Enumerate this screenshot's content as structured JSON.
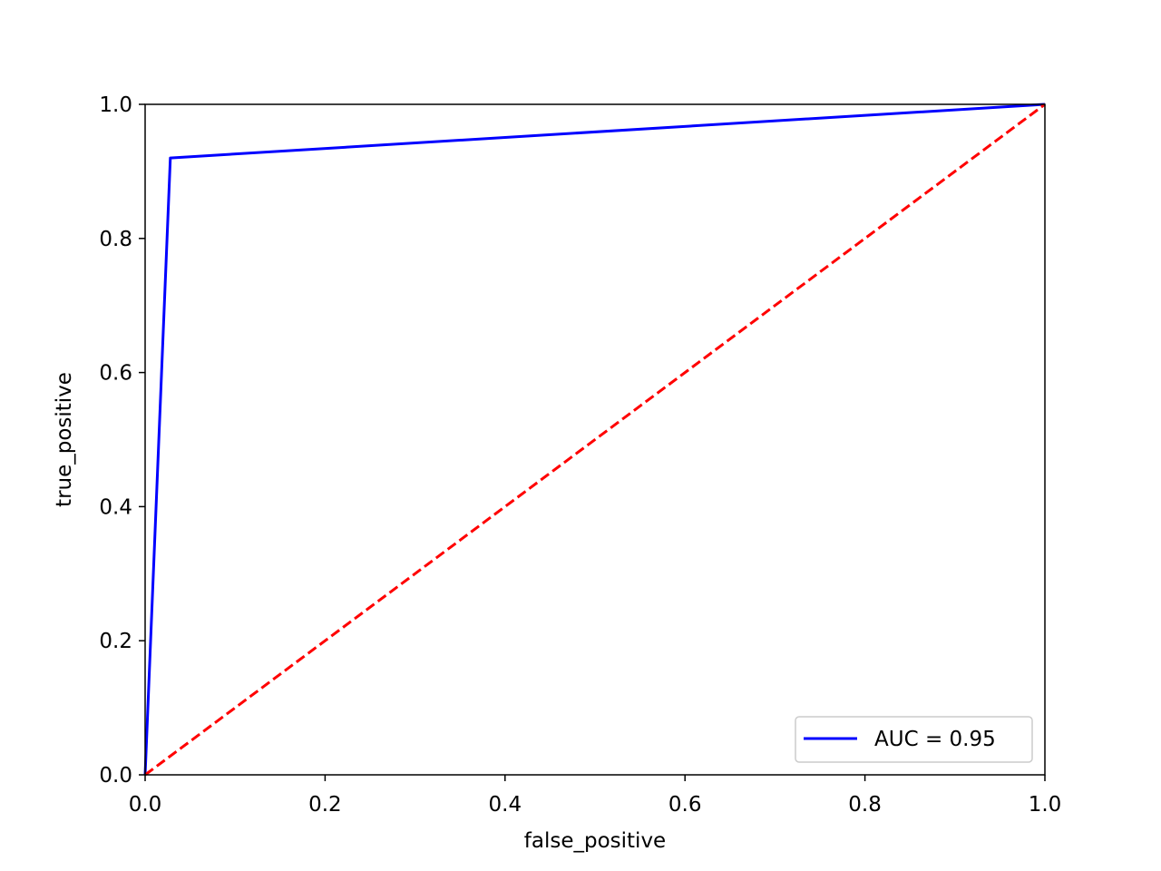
{
  "chart_data": {
    "type": "line",
    "title": "",
    "xlabel": "false_positive",
    "ylabel": "true_positive",
    "xlim": [
      0.0,
      1.0
    ],
    "ylim": [
      0.0,
      1.0
    ],
    "xticks": [
      "0.0",
      "0.2",
      "0.4",
      "0.6",
      "0.8",
      "1.0"
    ],
    "yticks": [
      "0.0",
      "0.2",
      "0.4",
      "0.6",
      "0.8",
      "1.0"
    ],
    "grid": false,
    "legend_position": "lower right",
    "series": [
      {
        "name": "AUC = 0.95",
        "color": "#0000ff",
        "style": "solid",
        "x": [
          0.0,
          0.028,
          1.0
        ],
        "y": [
          0.0,
          0.92,
          1.0
        ]
      },
      {
        "color": "#ff0000",
        "style": "dashed",
        "x": [
          0.0,
          1.0
        ],
        "y": [
          0.0,
          1.0
        ]
      }
    ]
  }
}
